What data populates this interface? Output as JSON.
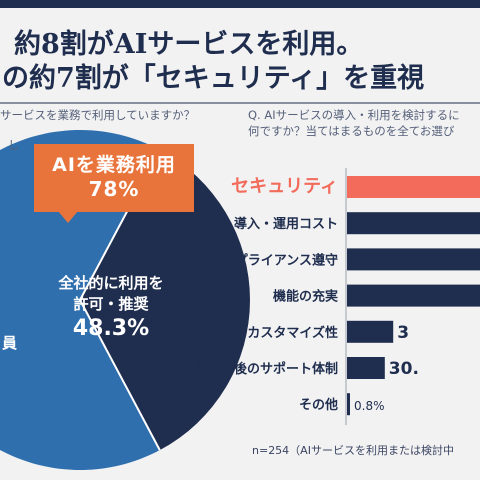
{
  "title": {
    "line1": "約8割がAIサービスを利用。",
    "line2": "の約7割が「セキュリティ」を重視"
  },
  "left": {
    "question": "サービスを業務で利用していますか？",
    "cut_text": "し",
    "callout_line1": "AIを業務利用",
    "callout_line2": "78%",
    "segment_label_line1": "全社的に利用を",
    "segment_label_line2": "許可・推奨",
    "segment_value": "48.3%",
    "partial_label": "員"
  },
  "right": {
    "question_line1": "Q. AIサービスの導入・利用を検討するに",
    "question_line2": "何ですか？当てはまるものを全てお選び",
    "note": "n=254（AIサービスを利用または検討中"
  },
  "colors": {
    "navy": "#1f2d4e",
    "blue": "#2f6fae",
    "highlight": "#f26b5b",
    "orange": "#e8743b"
  },
  "chart_data": [
    {
      "type": "pie",
      "slices": [
        {
          "label": "全社的に利用を許可・推奨",
          "value": 48.3
        }
      ],
      "callout": "AIを業務利用 78%"
    },
    {
      "type": "bar",
      "orientation": "horizontal",
      "categories": [
        "セキュリティ",
        "導入・運用コスト",
        "コンプライアンス遵守",
        "機能の充実",
        "カスタマイズ性",
        "導入前後のサポート体制",
        "その他"
      ],
      "values": [
        null,
        null,
        null,
        null,
        null,
        30,
        0.8
      ],
      "value_labels": [
        "",
        "",
        "",
        "",
        "3",
        "30.",
        "0.8%"
      ],
      "relative_lengths": [
        1.0,
        1.0,
        1.0,
        1.0,
        0.33,
        0.27,
        0.01
      ],
      "highlight_index": 0
    }
  ]
}
